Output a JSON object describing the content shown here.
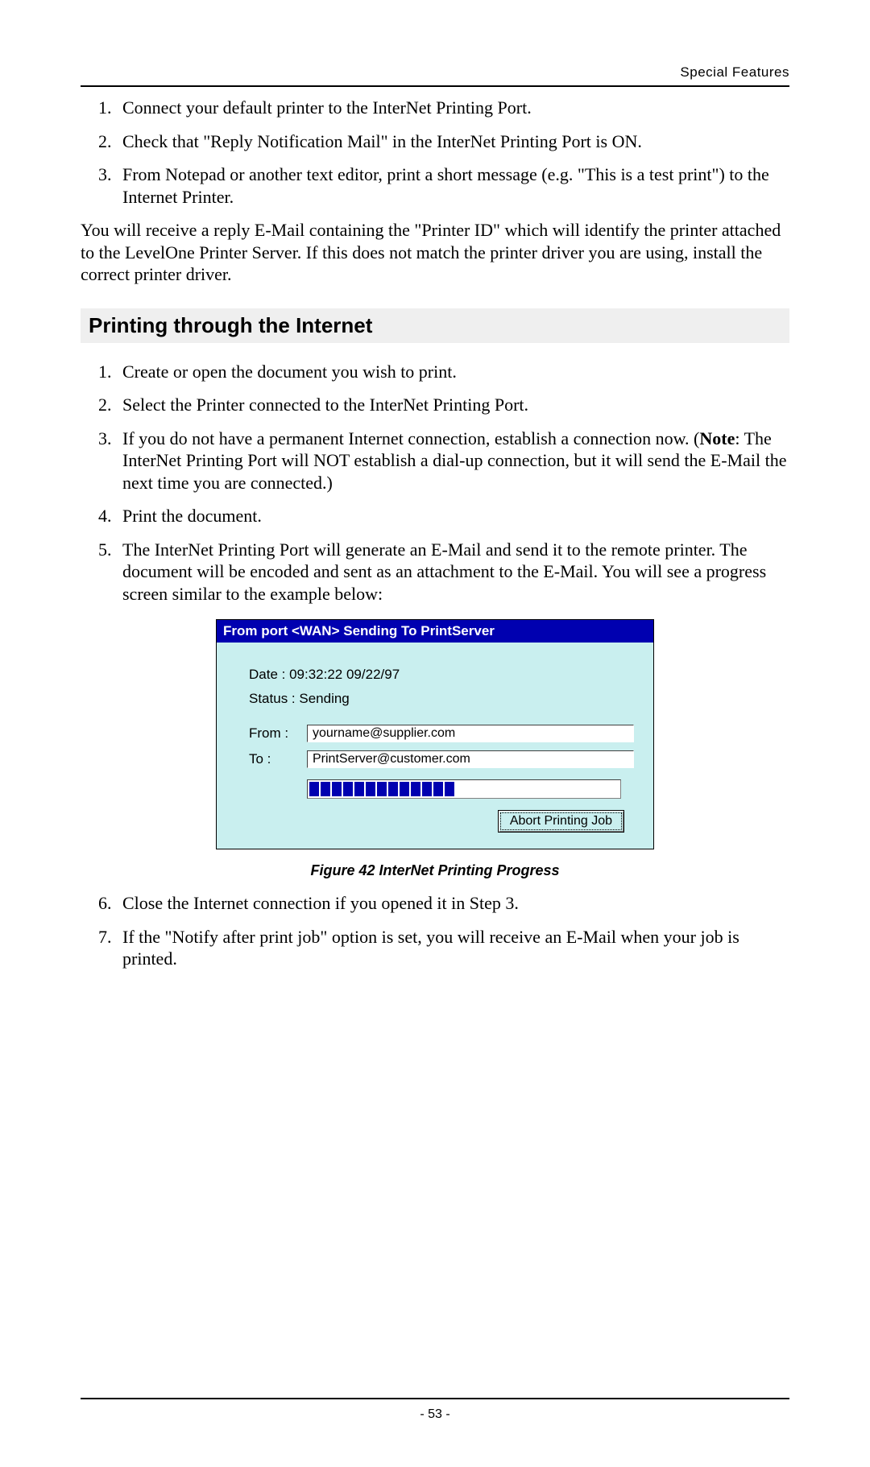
{
  "header": {
    "section_label": "Special Features"
  },
  "intro_list": {
    "items": [
      "Connect your default printer to the InterNet Printing Port.",
      "Check that \"Reply Notification Mail\" in the InterNet Printing Port is ON.",
      "From Notepad or another text editor, print a short message (e.g. \"This is a test print\") to the Internet Printer."
    ]
  },
  "intro_para": "You will receive a reply E-Mail containing the \"Printer ID\" which will identify the printer attached to the LevelOne Printer Server. If this does not match the printer driver you are using, install the correct printer driver.",
  "section_heading": "Printing through the Internet",
  "steps": {
    "s1": "Create or open the document you wish to print.",
    "s2": "Select the Printer connected to the InterNet Printing Port.",
    "s3_pre": "If you do not have a permanent Internet connection, establish a connection now. (",
    "s3_note_label": "Note",
    "s3_post": ": The InterNet Printing Port will NOT establish a dial-up connection, but it will send the E-Mail the next time you are connected.)",
    "s4": "Print the document.",
    "s5": "The InterNet Printing Port will generate an E-Mail and send it to the remote printer. The document will be encoded and sent as an attachment to the E-Mail. You will see a progress screen similar to the example below:",
    "s6": "Close the Internet connection if you opened it in Step 3.",
    "s7": "If the \"Notify after print job\" option is set, you will receive an E-Mail when your job is printed."
  },
  "dialog": {
    "title": "From port <WAN> Sending To PrintServer",
    "date_line": "Date : 09:32:22 09/22/97",
    "status_line": "Status : Sending",
    "from_label": "From :",
    "from_value": "yourname@supplier.com",
    "to_label": "To :",
    "to_value": "PrintServer@customer.com",
    "progress_segments": 13,
    "abort_label": "Abort Printing Job",
    "bg_color": "#c9efef",
    "titlebar_color": "#0000b0",
    "progress_color": "#0000b0"
  },
  "caption": "Figure 42 InterNet Printing Progress",
  "footer": {
    "page_number": "- 53 -"
  }
}
